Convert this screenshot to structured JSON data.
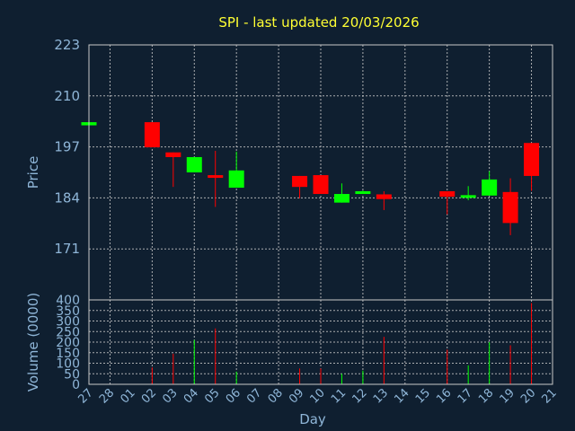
{
  "chart_data": {
    "type": "candlestick",
    "title": "SPI - last updated 20/03/2026",
    "price_axis": {
      "label": "Price",
      "ylim": [
        158,
        223
      ],
      "ticks": [
        223,
        210,
        197,
        184,
        171
      ]
    },
    "volume_axis": {
      "label": "Volume (0000)",
      "ylim": [
        0,
        400
      ],
      "ticks": [
        400,
        350,
        300,
        250,
        200,
        150,
        100,
        50,
        0
      ]
    },
    "x_axis": {
      "label": "Day",
      "ticks": [
        "27",
        "28",
        "01",
        "02",
        "03",
        "04",
        "05",
        "06",
        "07",
        "08",
        "09",
        "10",
        "11",
        "12",
        "13",
        "14",
        "15",
        "16",
        "17",
        "18",
        "19",
        "20",
        "21"
      ]
    },
    "colors": {
      "up": "#00ff00",
      "down": "#ff0000",
      "title": "#ffff33",
      "axis_text": "#8fb6d8",
      "background": "#0f1f30"
    },
    "grid": true,
    "candles": [
      {
        "day": "27",
        "open": 202.5,
        "high": 203.3,
        "low": 202.5,
        "close": 203.3,
        "volume": 0
      },
      {
        "day": "02",
        "open": 203.3,
        "high": 203.3,
        "low": 196.9,
        "close": 196.9,
        "volume": 80
      },
      {
        "day": "03",
        "open": 195.6,
        "high": 195.6,
        "low": 186.8,
        "close": 194.4,
        "volume": 145
      },
      {
        "day": "04",
        "open": 190.5,
        "high": 194.4,
        "low": 190.5,
        "close": 194.4,
        "volume": 210
      },
      {
        "day": "05",
        "open": 189.8,
        "high": 196.0,
        "low": 181.7,
        "close": 189.4,
        "volume": 265
      },
      {
        "day": "06",
        "open": 186.6,
        "high": 195.8,
        "low": 186.6,
        "close": 191.0,
        "volume": 60
      },
      {
        "day": "09",
        "open": 189.6,
        "high": 189.6,
        "low": 183.9,
        "close": 186.8,
        "volume": 75
      },
      {
        "day": "10",
        "open": 189.8,
        "high": 189.8,
        "low": 185.0,
        "close": 185.0,
        "volume": 75
      },
      {
        "day": "11",
        "open": 182.8,
        "high": 187.7,
        "low": 182.8,
        "close": 185.0,
        "volume": 50
      },
      {
        "day": "12",
        "open": 185.0,
        "high": 185.9,
        "low": 185.0,
        "close": 185.7,
        "volume": 65
      },
      {
        "day": "13",
        "open": 184.9,
        "high": 185.7,
        "low": 180.9,
        "close": 183.7,
        "volume": 225
      },
      {
        "day": "16",
        "open": 185.7,
        "high": 185.7,
        "low": 179.8,
        "close": 184.3,
        "volume": 165
      },
      {
        "day": "17",
        "open": 184.3,
        "high": 187.0,
        "low": 183.4,
        "close": 184.7,
        "volume": 90
      },
      {
        "day": "18",
        "open": 184.6,
        "high": 190.8,
        "low": 184.6,
        "close": 188.7,
        "volume": 200
      },
      {
        "day": "19",
        "open": 185.5,
        "high": 189.0,
        "low": 174.5,
        "close": 177.6,
        "volume": 185
      },
      {
        "day": "20",
        "open": 198.0,
        "high": 198.0,
        "low": 185.8,
        "close": 189.6,
        "volume": 385
      }
    ]
  }
}
